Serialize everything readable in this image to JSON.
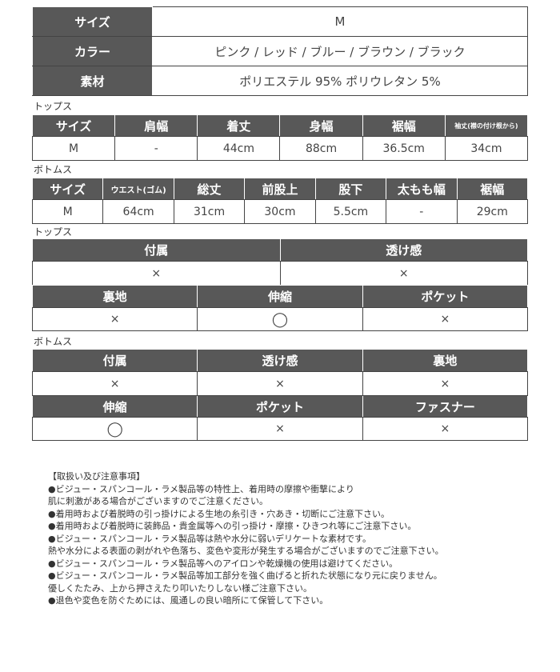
{
  "summary": {
    "rows": [
      {
        "label": "サイズ",
        "value": "M"
      },
      {
        "label": "カラー",
        "value": "ピンク / レッド / ブルー / ブラウン / ブラック"
      },
      {
        "label": "素材",
        "value": "ポリエステル 95%  ポリウレタン 5%"
      }
    ]
  },
  "tops_size": {
    "section": "トップス",
    "headers": [
      "サイズ",
      "肩幅",
      "着丈",
      "身幅",
      "裾幅",
      "袖丈(襟の付け根から)"
    ],
    "values": [
      "M",
      "-",
      "44cm",
      "88cm",
      "36.5cm",
      "34cm"
    ]
  },
  "bottoms_size": {
    "section": "ボトムス",
    "headers": [
      "サイズ",
      "ウエスト(ゴム)",
      "総丈",
      "前股上",
      "股下",
      "太もも幅",
      "裾幅"
    ],
    "values": [
      "M",
      "64cm",
      "31cm",
      "30cm",
      "5.5cm",
      "-",
      "29cm"
    ]
  },
  "tops_details": {
    "section": "トップス",
    "row1_headers": [
      "付属",
      "透け感"
    ],
    "row1_values": [
      "×",
      "×"
    ],
    "row2_headers": [
      "裏地",
      "伸縮",
      "ポケット"
    ],
    "row2_values": [
      "×",
      "◯",
      "×"
    ]
  },
  "bottoms_details": {
    "section": "ボトムス",
    "row1_headers": [
      "付属",
      "透け感",
      "裏地"
    ],
    "row1_values": [
      "×",
      "×",
      "×"
    ],
    "row2_headers": [
      "伸縮",
      "ポケット",
      "ファスナー"
    ],
    "row2_values": [
      "◯",
      "×",
      "×"
    ]
  },
  "notes": [
    "【取扱い及び注意事項】",
    "●ビジュー・スパンコール・ラメ製品等の特性上、着用時の摩擦や衝撃により",
    "肌に刺激がある場合がございますのでご注意ください。",
    "●着用時および着脱時の引っ掛けによる生地の糸引き・穴あき・切断にご注意下さい。",
    "●着用時および着脱時に装飾品・貴金属等への引っ掛け・摩擦・ひきつれ等にご注意下さい。",
    "●ビジュー・スパンコール・ラメ製品等は熱や水分に弱いデリケートな素材です。",
    "熱や水分による表面の剥がれや色落ち、変色や変形が発生する場合がございますのでご注意下さい。",
    "●ビジュー・スパンコール・ラメ製品等へのアイロンや乾燥機の使用は避けてください。",
    "●ビジュー・スパンコール・ラメ製品等加工部分を強く曲げると折れた状態になり元に戻りません。",
    "優しくたたみ、上から押さえたり叩いたりしない様ご注意下さい。",
    "●退色や変色を防ぐためには、風通しの良い暗所にて保管して下さい。"
  ]
}
